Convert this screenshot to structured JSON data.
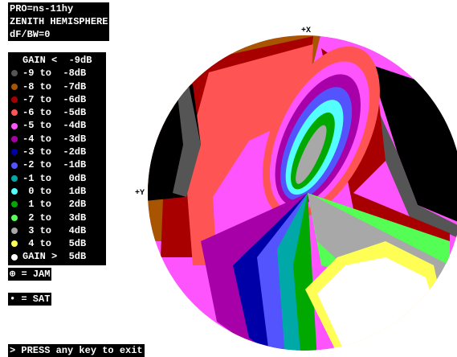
{
  "header": {
    "lines": [
      "PRO=ns-11hy",
      "ZENITH HEMISPHERE",
      "dF/BW=0"
    ]
  },
  "legend": {
    "rows": [
      {
        "label": "GAIN <  -9dB",
        "color": "#000000"
      },
      {
        "label": "-9 to  -8dB",
        "color": "#555555"
      },
      {
        "label": "-8 to  -7dB",
        "color": "#a85400"
      },
      {
        "label": "-7 to  -6dB",
        "color": "#a80000"
      },
      {
        "label": "-6 to  -5dB",
        "color": "#fe5454"
      },
      {
        "label": "-5 to  -4dB",
        "color": "#fe54fe"
      },
      {
        "label": "-4 to  -3dB",
        "color": "#a800a8"
      },
      {
        "label": "-3 to  -2dB",
        "color": "#0000a8"
      },
      {
        "label": "-2 to  -1dB",
        "color": "#5454fe"
      },
      {
        "label": "-1 to   0dB",
        "color": "#00a8a8"
      },
      {
        "label": " 0 to   1dB",
        "color": "#54fefe"
      },
      {
        "label": " 1 to   2dB",
        "color": "#00a800"
      },
      {
        "label": " 2 to   3dB",
        "color": "#54fe54"
      },
      {
        "label": " 3 to   4dB",
        "color": "#a8a8a8"
      },
      {
        "label": " 4 to   5dB",
        "color": "#fefe54"
      },
      {
        "label": "GAIN >  5dB",
        "color": "#ffffff"
      }
    ]
  },
  "symbols": {
    "jam": "= JAM",
    "sat": "= SAT"
  },
  "axes": {
    "x": "+X",
    "y": "+Y"
  },
  "footer": "> PRESS any key to exit"
}
